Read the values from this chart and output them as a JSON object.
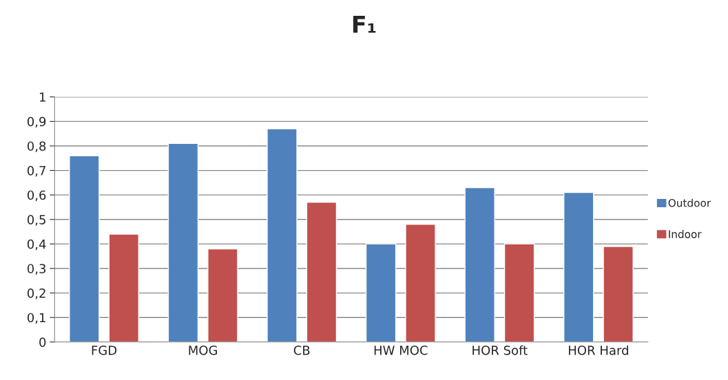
{
  "chart_data": {
    "type": "bar",
    "title": "F₁",
    "categories": [
      "FGD",
      "MOG",
      "CB",
      "HW MOC",
      "HOR Soft",
      "HOR Hard"
    ],
    "series": [
      {
        "name": "Outdoor",
        "color": "#4f81bd",
        "values": [
          0.76,
          0.81,
          0.87,
          0.4,
          0.63,
          0.61
        ]
      },
      {
        "name": "Indoor",
        "color": "#c0504d",
        "values": [
          0.44,
          0.38,
          0.57,
          0.48,
          0.4,
          0.39
        ]
      }
    ],
    "ylim": [
      0,
      1
    ],
    "yticks": [
      0,
      {
        "value": 0.1,
        "label": "0,1"
      },
      {
        "value": 0.2,
        "label": "0,2"
      },
      {
        "value": 0.3,
        "label": "0,3"
      },
      {
        "value": 0.4,
        "label": "0,4"
      },
      {
        "value": 0.5,
        "label": "0,5"
      },
      {
        "value": 0.6,
        "label": "0,6"
      },
      {
        "value": 0.7,
        "label": "0,7"
      },
      {
        "value": 0.8,
        "label": "0,8"
      },
      {
        "value": 0.9,
        "label": "0,9"
      },
      1
    ],
    "grid": "y",
    "legend": "right"
  }
}
